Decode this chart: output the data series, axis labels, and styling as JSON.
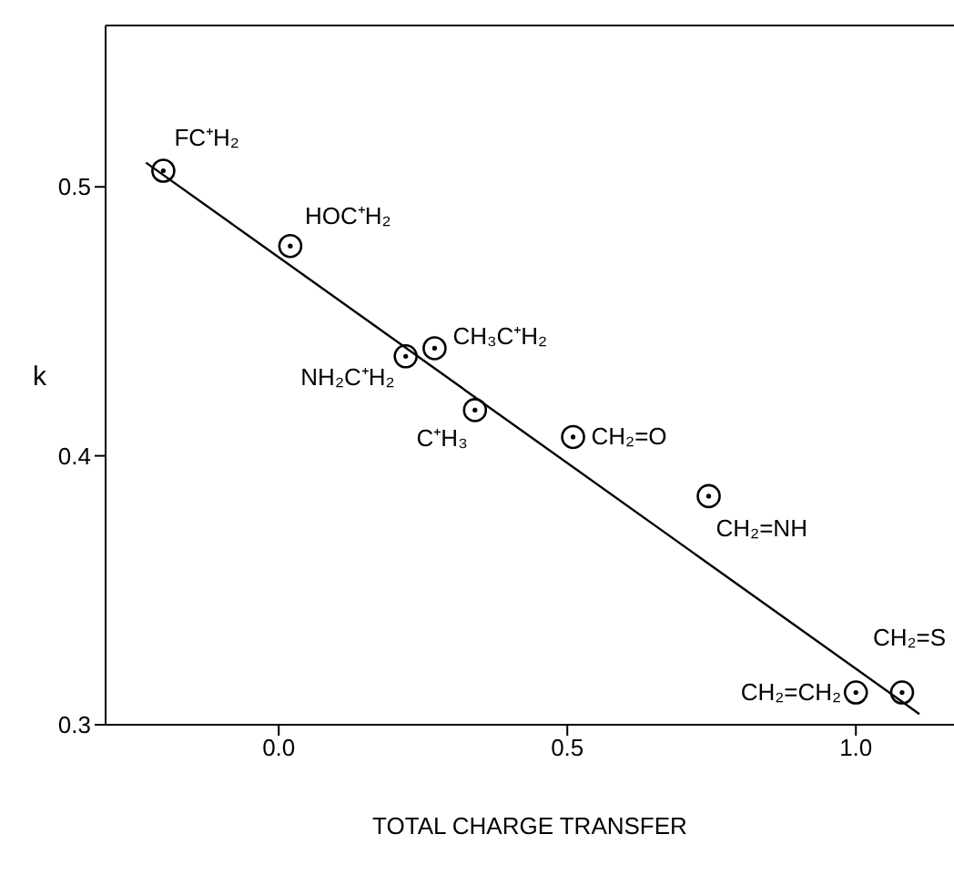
{
  "chart_data": {
    "type": "scatter",
    "xlabel": "TOTAL CHARGE TRANSFER",
    "ylabel": "k",
    "xlim": [
      -0.3,
      1.17
    ],
    "ylim": [
      0.3,
      0.56
    ],
    "xticks": [
      {
        "value": 0,
        "label": "0.0"
      },
      {
        "value": 0.5,
        "label": "0.5"
      },
      {
        "value": 1,
        "label": "1.0"
      }
    ],
    "yticks": [
      {
        "value": 0.3,
        "label": "0.3"
      },
      {
        "value": 0.4,
        "label": "0.4"
      },
      {
        "value": 0.5,
        "label": "0.5"
      }
    ],
    "grid": false,
    "legend": false,
    "series": [
      {
        "marker": "circle",
        "color": "#000000",
        "x": [
          -0.2,
          0.02,
          0.22,
          0.27,
          0.34,
          0.51,
          0.745,
          1.0,
          1.08
        ],
        "values": [
          0.506,
          0.478,
          0.437,
          0.44,
          0.417,
          0.407,
          0.385,
          0.312,
          0.312
        ]
      },
      {
        "type": "line",
        "marker": "none",
        "color": "#000000",
        "x": [
          -0.23,
          1.11
        ],
        "values": [
          0.509,
          0.304
        ]
      }
    ],
    "annotations": [
      {
        "text": "FC⁺H₂",
        "x": -0.2,
        "y": 0.506
      },
      {
        "text": "HOC⁺H₂",
        "x": 0.02,
        "y": 0.478
      },
      {
        "text": "NH₂C⁺H₂",
        "x": 0.22,
        "y": 0.437
      },
      {
        "text": "CH₃C⁺H₂",
        "x": 0.27,
        "y": 0.44
      },
      {
        "text": "C⁺H₃",
        "x": 0.34,
        "y": 0.417
      },
      {
        "text": "CH₂=O",
        "x": 0.51,
        "y": 0.407
      },
      {
        "text": "CH₂=NH",
        "x": 0.745,
        "y": 0.385
      },
      {
        "text": "CH₂=CH₂",
        "x": 1.0,
        "y": 0.312
      },
      {
        "text": "CH₂=S",
        "x": 1.08,
        "y": 0.312
      }
    ]
  }
}
